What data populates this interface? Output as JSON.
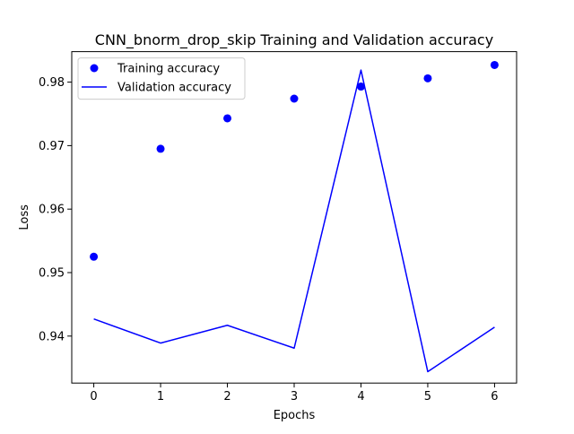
{
  "colors": {
    "series": "#0000ff",
    "axes": "#000000",
    "background": "#ffffff",
    "legend_border": "#cccccc"
  },
  "chart_data": {
    "type": "line",
    "title": "CNN_bnorm_drop_skip Training and Validation accuracy",
    "xlabel": "Epochs",
    "ylabel": "Loss",
    "x": [
      0,
      1,
      2,
      3,
      4,
      5,
      6
    ],
    "xticks": [
      "0",
      "1",
      "2",
      "3",
      "4",
      "5",
      "6"
    ],
    "yticks": [
      0.94,
      0.95,
      0.96,
      0.97,
      0.98
    ],
    "ytick_labels": [
      "0.94",
      "0.95",
      "0.96",
      "0.97",
      "0.98"
    ],
    "xlim": [
      -0.33,
      6.33
    ],
    "ylim": [
      0.9326,
      0.9848
    ],
    "grid": false,
    "legend_position": "upper left",
    "series": [
      {
        "name": "Training accuracy",
        "style": "markers",
        "values": [
          0.9525,
          0.9695,
          0.9743,
          0.9774,
          0.9793,
          0.9806,
          0.9827
        ]
      },
      {
        "name": "Validation accuracy",
        "style": "line",
        "values": [
          0.9427,
          0.9389,
          0.9417,
          0.9381,
          0.9819,
          0.9344,
          0.9414
        ]
      }
    ]
  }
}
